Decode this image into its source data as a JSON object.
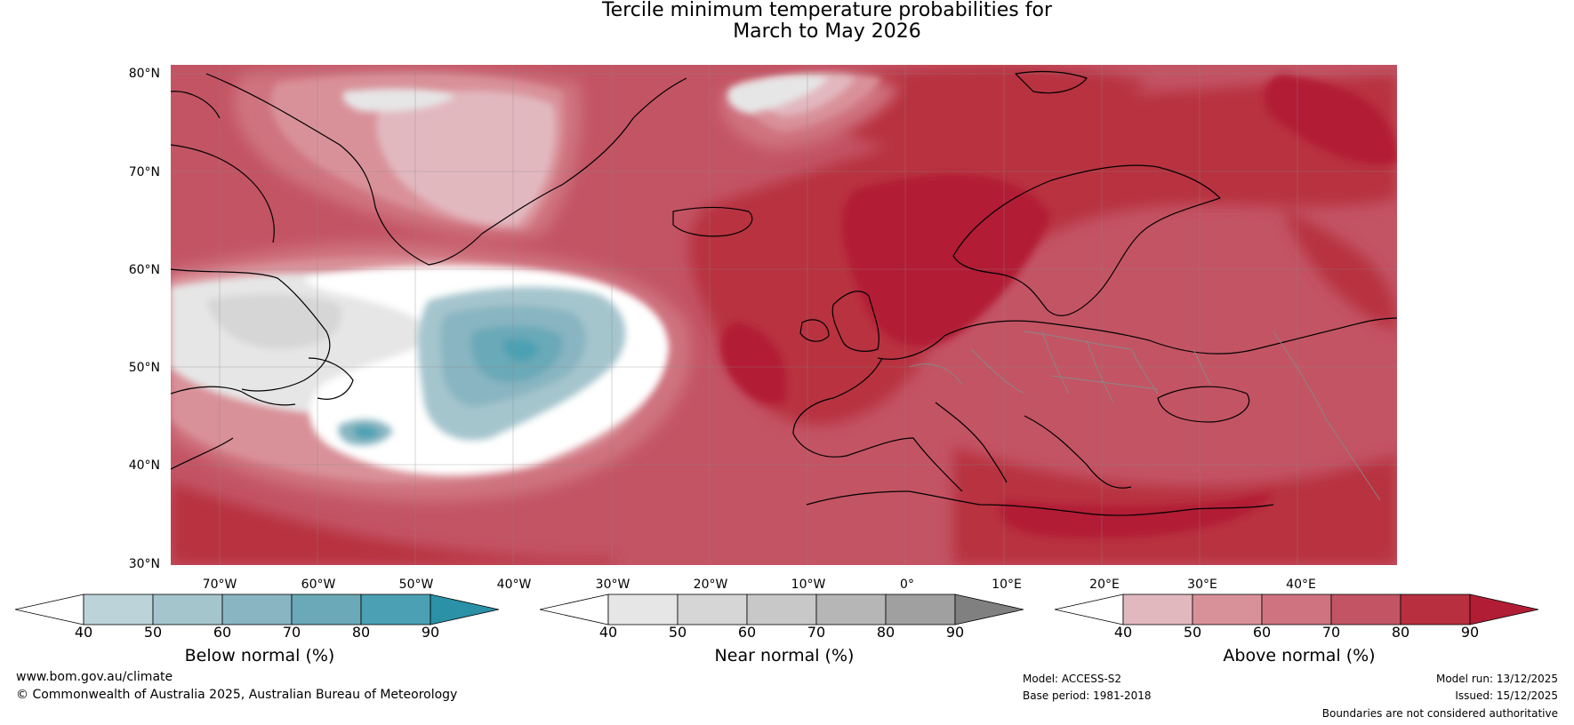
{
  "title": {
    "line1": "Tercile minimum temperature probabilities for",
    "line2": "March to May 2026"
  },
  "map": {
    "lat_labels": [
      "80°N",
      "70°N",
      "60°N",
      "50°N",
      "40°N",
      "30°N"
    ],
    "lon_labels": [
      "70°W",
      "60°W",
      "50°W",
      "40°W",
      "30°W",
      "20°W",
      "10°W",
      "0°",
      "10°E",
      "20°E",
      "30°E",
      "40°E"
    ],
    "extent": {
      "lon_min": -75,
      "lon_max": 50,
      "lat_min": 30,
      "lat_max": 81
    }
  },
  "legends": [
    {
      "title": "Below normal (%)",
      "ticks": [
        "40",
        "50",
        "60",
        "70",
        "80",
        "90"
      ],
      "colors": [
        "#ffffff",
        "#bcd3da",
        "#a5c5cd",
        "#88b5c1",
        "#6ba9b8",
        "#4ba1b3",
        "#2a91a6"
      ]
    },
    {
      "title": "Near normal (%)",
      "ticks": [
        "40",
        "50",
        "60",
        "70",
        "80",
        "90"
      ],
      "colors": [
        "#ffffff",
        "#e6e6e6",
        "#d6d6d6",
        "#c8c8c8",
        "#b6b6b6",
        "#a0a0a0",
        "#808080"
      ]
    },
    {
      "title": "Above normal (%)",
      "ticks": [
        "40",
        "50",
        "60",
        "70",
        "80",
        "90"
      ],
      "colors": [
        "#ffffff",
        "#e2b8bf",
        "#d99199",
        "#cf7380",
        "#c35464",
        "#b8303f",
        "#b21d36"
      ]
    }
  ],
  "footer": {
    "website": "www.bom.gov.au/climate",
    "copyright": "© Commonwealth of Australia 2025, Australian Bureau of Meteorology",
    "model": "Model: ACCESS-S2",
    "base_period": "Base period: 1981-2018",
    "model_run": "Model run: 13/12/2025",
    "issued": "Issued: 15/12/2025",
    "disclaimer": "Boundaries are not considered authoritative"
  }
}
